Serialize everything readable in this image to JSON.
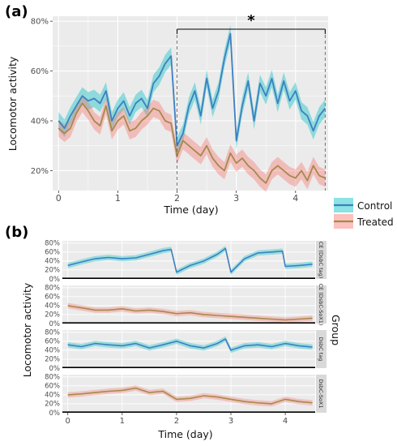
{
  "colors": {
    "control": "#00BFC4",
    "treated": "#F8766D",
    "control_line": "#3d7fc1",
    "treated_line": "#a58a4c",
    "panel_bg": "#ebebeb",
    "grid": "#ffffff"
  },
  "panel_a": {
    "label": "(a)",
    "ylabel": "Locomotor activity",
    "xlabel": "Time (day)",
    "significance": "*",
    "legend": {
      "title": "",
      "items": [
        "Control",
        "Treated"
      ]
    },
    "y_ticks": [
      "20%",
      "40%",
      "60%",
      "80%"
    ],
    "x_ticks": [
      "0",
      "1",
      "2",
      "3",
      "4"
    ]
  },
  "panel_b": {
    "label": "(b)",
    "ylabel": "Locomotor activity",
    "xlabel": "Time (day)",
    "legend_title": "Group",
    "y_ticks": [
      "0%",
      "20%",
      "40%",
      "60%",
      "80%"
    ],
    "x_ticks": [
      "0",
      "1",
      "2",
      "3",
      "4"
    ],
    "facets": [
      "CE (DsbC tag)",
      "CE (DsbC-SoX1)",
      "DsbC tag",
      "DsbC-SoX1"
    ]
  },
  "chart_data": [
    {
      "type": "line",
      "panel": "(a)",
      "xlabel": "Time (day)",
      "ylabel": "Locomotor activity",
      "xlim": [
        -0.1,
        4.55
      ],
      "ylim": [
        0.12,
        0.82
      ],
      "grid": true,
      "legend_position": "right",
      "annotation": {
        "text": "*",
        "x_from": 2.0,
        "x_to": 4.5
      },
      "x": [
        0.0,
        0.1,
        0.2,
        0.3,
        0.4,
        0.5,
        0.6,
        0.7,
        0.8,
        0.9,
        1.0,
        1.1,
        1.2,
        1.3,
        1.4,
        1.5,
        1.6,
        1.7,
        1.8,
        1.9,
        2.0,
        2.1,
        2.2,
        2.3,
        2.4,
        2.5,
        2.6,
        2.7,
        2.8,
        2.9,
        3.0,
        3.1,
        3.2,
        3.3,
        3.4,
        3.5,
        3.6,
        3.7,
        3.8,
        3.9,
        4.0,
        4.1,
        4.2,
        4.3,
        4.4,
        4.5
      ],
      "series": [
        {
          "name": "Control",
          "values": [
            0.4,
            0.37,
            0.42,
            0.46,
            0.5,
            0.48,
            0.49,
            0.47,
            0.52,
            0.4,
            0.45,
            0.48,
            0.42,
            0.47,
            0.49,
            0.45,
            0.55,
            0.58,
            0.63,
            0.66,
            0.3,
            0.35,
            0.46,
            0.52,
            0.42,
            0.57,
            0.45,
            0.52,
            0.65,
            0.75,
            0.32,
            0.46,
            0.56,
            0.4,
            0.55,
            0.5,
            0.57,
            0.47,
            0.56,
            0.48,
            0.52,
            0.44,
            0.42,
            0.36,
            0.42,
            0.45
          ]
        },
        {
          "name": "Treated",
          "values": [
            0.37,
            0.35,
            0.37,
            0.43,
            0.47,
            0.44,
            0.4,
            0.38,
            0.46,
            0.36,
            0.4,
            0.42,
            0.36,
            0.37,
            0.4,
            0.42,
            0.45,
            0.44,
            0.4,
            0.39,
            0.26,
            0.32,
            0.3,
            0.28,
            0.26,
            0.3,
            0.25,
            0.22,
            0.2,
            0.27,
            0.23,
            0.25,
            0.22,
            0.2,
            0.17,
            0.15,
            0.2,
            0.22,
            0.2,
            0.18,
            0.17,
            0.2,
            0.16,
            0.22,
            0.18,
            0.17
          ]
        }
      ]
    },
    {
      "type": "line",
      "panel": "(b)",
      "facet": "CE (DsbC tag)",
      "group": "Control",
      "ylim": [
        0,
        0.85
      ],
      "x": [
        0.0,
        0.25,
        0.5,
        0.75,
        1.0,
        1.25,
        1.5,
        1.75,
        1.9,
        2.0,
        2.25,
        2.5,
        2.75,
        2.9,
        3.0,
        3.25,
        3.5,
        3.75,
        3.95,
        4.0,
        4.25,
        4.5
      ],
      "values": [
        0.3,
        0.38,
        0.45,
        0.48,
        0.45,
        0.47,
        0.55,
        0.63,
        0.66,
        0.15,
        0.3,
        0.4,
        0.55,
        0.68,
        0.15,
        0.45,
        0.58,
        0.6,
        0.62,
        0.28,
        0.3,
        0.33
      ]
    },
    {
      "type": "line",
      "panel": "(b)",
      "facet": "CE (DsbC-SoX1)",
      "group": "Treated",
      "ylim": [
        0,
        0.85
      ],
      "x": [
        0.0,
        0.25,
        0.5,
        0.75,
        1.0,
        1.25,
        1.5,
        1.75,
        2.0,
        2.25,
        2.5,
        2.75,
        3.0,
        3.25,
        3.5,
        3.75,
        4.0,
        4.25,
        4.5
      ],
      "values": [
        0.4,
        0.35,
        0.3,
        0.3,
        0.33,
        0.28,
        0.3,
        0.27,
        0.22,
        0.24,
        0.2,
        0.18,
        0.16,
        0.14,
        0.12,
        0.1,
        0.08,
        0.1,
        0.12
      ]
    },
    {
      "type": "line",
      "panel": "(b)",
      "facet": "DsbC tag",
      "group": "Control",
      "ylim": [
        0,
        0.85
      ],
      "x": [
        0.0,
        0.25,
        0.5,
        0.75,
        1.0,
        1.25,
        1.5,
        1.75,
        2.0,
        2.25,
        2.5,
        2.75,
        2.9,
        3.0,
        3.25,
        3.5,
        3.75,
        4.0,
        4.25,
        4.5
      ],
      "values": [
        0.52,
        0.48,
        0.55,
        0.52,
        0.5,
        0.55,
        0.45,
        0.52,
        0.6,
        0.5,
        0.45,
        0.55,
        0.65,
        0.4,
        0.5,
        0.52,
        0.48,
        0.55,
        0.5,
        0.47
      ]
    },
    {
      "type": "line",
      "panel": "(b)",
      "facet": "DsbC-SoX1",
      "group": "Treated",
      "ylim": [
        0,
        0.85
      ],
      "x": [
        0.0,
        0.25,
        0.5,
        0.75,
        1.0,
        1.25,
        1.5,
        1.75,
        2.0,
        2.25,
        2.5,
        2.75,
        3.0,
        3.25,
        3.5,
        3.75,
        4.0,
        4.25,
        4.5
      ],
      "values": [
        0.4,
        0.42,
        0.45,
        0.48,
        0.5,
        0.55,
        0.45,
        0.48,
        0.3,
        0.32,
        0.38,
        0.35,
        0.3,
        0.25,
        0.22,
        0.2,
        0.3,
        0.25,
        0.22
      ]
    }
  ]
}
